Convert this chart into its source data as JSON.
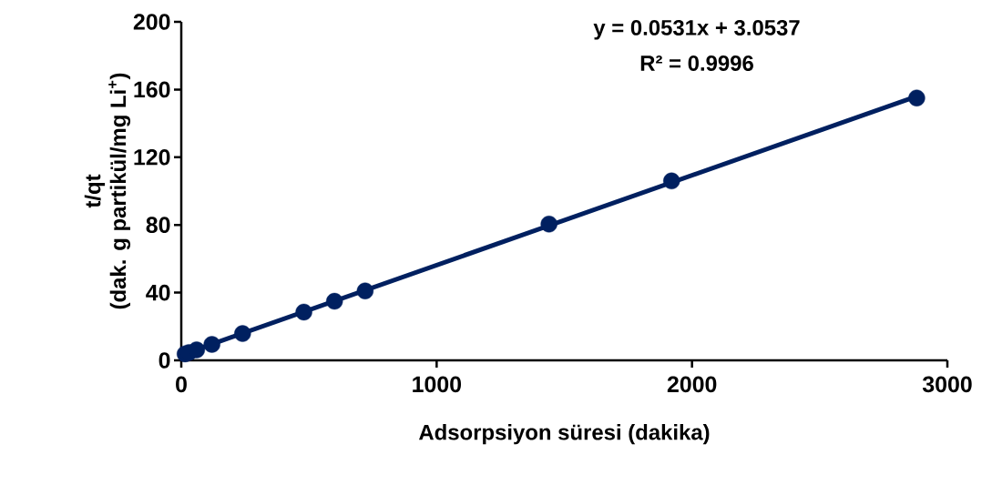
{
  "chart_data": {
    "type": "scatter",
    "xlabel": "Adsorpsiyon süresi (dakika)",
    "ylabel": "t/qt (dak. g partikül/mg Li$^{+}$)",
    "annotations": [
      "y = 0.0531x + 3.0537",
      "R² = 0.9996"
    ],
    "xlim": [
      0,
      3000
    ],
    "ylim": [
      0,
      200
    ],
    "xticks": [
      0,
      1000,
      2000,
      3000
    ],
    "yticks": [
      0,
      40,
      80,
      120,
      160,
      200
    ],
    "series": [
      {
        "type": "line",
        "marker": "none",
        "color": "#002060",
        "x": [
          15,
          2880
        ],
        "values": [
          4,
          156
        ]
      },
      {
        "marker": "circle",
        "color": "#002060",
        "x": [
          15,
          30,
          60,
          120,
          240,
          480,
          600,
          720,
          1440,
          1920,
          2880
        ],
        "values": [
          3.8,
          4.6,
          6.2,
          9.4,
          15.8,
          28.5,
          34.9,
          41,
          80.5,
          106,
          155
        ]
      }
    ]
  }
}
